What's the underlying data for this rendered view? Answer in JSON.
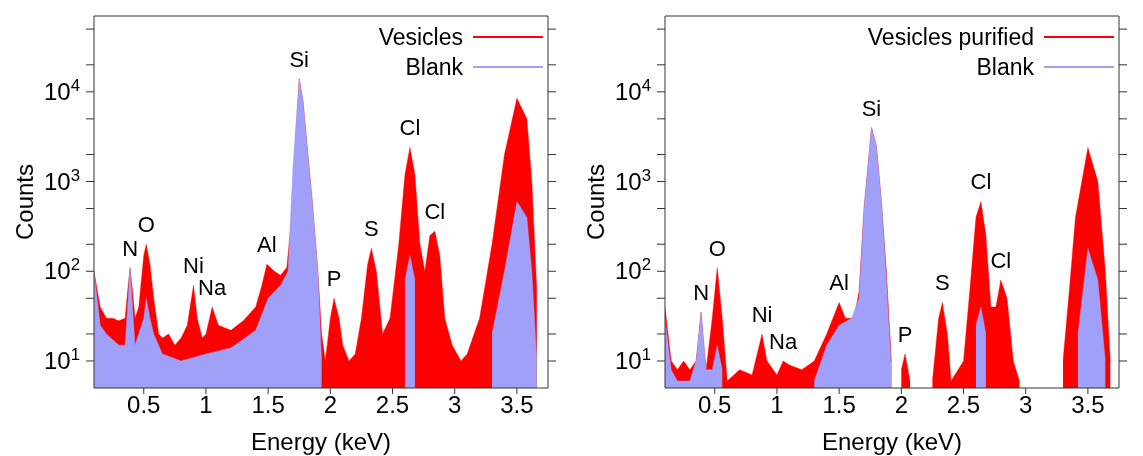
{
  "chart_data": [
    {
      "type": "area",
      "xlabel": "Energy (keV)",
      "ylabel": "Counts",
      "log": true,
      "legend": "top right",
      "grid": false,
      "xlim": [
        0.1,
        3.75
      ],
      "xticks": [
        0.5,
        1,
        1.5,
        2,
        2.5,
        3,
        3.5
      ],
      "ylim": [
        5,
        70000
      ],
      "yticks": [
        {
          "value": 10,
          "label": "10$^{1}$"
        },
        {
          "value": 20,
          "label": null
        },
        {
          "value": 50,
          "label": null
        },
        {
          "value": 100,
          "label": "10$^{2}$"
        },
        {
          "value": 200,
          "label": null
        },
        {
          "value": 500,
          "label": null
        },
        {
          "value": 1000,
          "label": "10$^{3}$"
        },
        {
          "value": 2000,
          "label": null
        },
        {
          "value": 5000,
          "label": null
        },
        {
          "value": 10000,
          "label": "10$^{4}$"
        },
        {
          "value": 20000,
          "label": null
        },
        {
          "value": 50000,
          "label": null
        }
      ],
      "series": [
        {
          "name": "Vesicles",
          "color": "#ff0000",
          "x": [
            0.1,
            0.15,
            0.2,
            0.25,
            0.3,
            0.35,
            0.37,
            0.39,
            0.41,
            0.43,
            0.46,
            0.5,
            0.52,
            0.55,
            0.58,
            0.62,
            0.65,
            0.7,
            0.75,
            0.8,
            0.85,
            0.9,
            0.93,
            0.97,
            1.0,
            1.05,
            1.1,
            1.2,
            1.3,
            1.4,
            1.45,
            1.49,
            1.55,
            1.6,
            1.65,
            1.68,
            1.72,
            1.75,
            1.78,
            1.82,
            1.86,
            1.9,
            1.93,
            1.96,
            2.0,
            2.03,
            2.07,
            2.1,
            2.15,
            2.2,
            2.25,
            2.3,
            2.33,
            2.37,
            2.42,
            2.48,
            2.55,
            2.6,
            2.64,
            2.68,
            2.72,
            2.76,
            2.8,
            2.84,
            2.88,
            2.92,
            2.98,
            3.05,
            3.1,
            3.2,
            3.3,
            3.4,
            3.5,
            3.58,
            3.62,
            3.66
          ],
          "values": [
            100,
            40,
            30,
            30,
            28,
            30,
            60,
            110,
            60,
            30,
            40,
            150,
            200,
            120,
            50,
            20,
            18,
            20,
            15,
            18,
            25,
            70,
            30,
            18,
            20,
            40,
            25,
            22,
            28,
            40,
            70,
            120,
            100,
            90,
            110,
            300,
            3000,
            14000,
            8000,
            2000,
            500,
            100,
            20,
            10,
            30,
            50,
            30,
            15,
            10,
            12,
            30,
            120,
            180,
            100,
            20,
            30,
            200,
            1200,
            2400,
            1200,
            200,
            100,
            250,
            280,
            150,
            30,
            15,
            10,
            12,
            30,
            200,
            2000,
            8500,
            5000,
            1000,
            60
          ]
        },
        {
          "name": "Blank",
          "color": "#a0a0f8",
          "x": [
            0.1,
            0.15,
            0.2,
            0.3,
            0.35,
            0.37,
            0.39,
            0.41,
            0.43,
            0.5,
            0.52,
            0.55,
            0.58,
            0.65,
            0.8,
            1.0,
            1.2,
            1.4,
            1.5,
            1.6,
            1.66,
            1.7,
            1.75,
            1.78,
            1.82,
            1.86,
            1.9,
            1.93,
            1.95,
            2.58,
            2.6,
            2.64,
            2.68,
            2.71,
            3.3,
            3.4,
            3.5,
            3.58,
            3.62,
            3.66
          ],
          "values": [
            100,
            25,
            20,
            15,
            15,
            40,
            110,
            40,
            15,
            30,
            50,
            30,
            20,
            12,
            10,
            12,
            14,
            22,
            50,
            70,
            100,
            1500,
            14000,
            8000,
            2000,
            500,
            100,
            10,
            null,
            null,
            80,
            150,
            80,
            null,
            20,
            100,
            600,
            400,
            100,
            10
          ]
        }
      ],
      "annotations": [
        {
          "text": "N",
          "x": 0.39,
          "y": 110
        },
        {
          "text": "O",
          "x": 0.52,
          "y": 200
        },
        {
          "text": "Ni",
          "x": 0.9,
          "y": 70
        },
        {
          "text": "Na",
          "x": 1.05,
          "y": 40
        },
        {
          "text": "Al",
          "x": 1.49,
          "y": 120
        },
        {
          "text": "Si",
          "x": 1.75,
          "y": 14000
        },
        {
          "text": "P",
          "x": 2.03,
          "y": 50
        },
        {
          "text": "S",
          "x": 2.33,
          "y": 180
        },
        {
          "text": "Cl",
          "x": 2.64,
          "y": 2400
        },
        {
          "text": "Cl",
          "x": 2.84,
          "y": 280
        }
      ]
    },
    {
      "type": "area",
      "xlabel": "Energy (keV)",
      "ylabel": "Counts",
      "log": true,
      "legend": "top right",
      "grid": false,
      "xlim": [
        0.1,
        3.75
      ],
      "xticks": [
        0.5,
        1,
        1.5,
        2,
        2.5,
        3,
        3.5
      ],
      "ylim": [
        5,
        70000
      ],
      "yticks": [
        {
          "value": 10,
          "label": "10$^{1}$"
        },
        {
          "value": 20,
          "label": null
        },
        {
          "value": 50,
          "label": null
        },
        {
          "value": 100,
          "label": "10$^{2}$"
        },
        {
          "value": 200,
          "label": null
        },
        {
          "value": 500,
          "label": null
        },
        {
          "value": 1000,
          "label": "10$^{3}$"
        },
        {
          "value": 2000,
          "label": null
        },
        {
          "value": 5000,
          "label": null
        },
        {
          "value": 10000,
          "label": "10$^{4}$"
        },
        {
          "value": 20000,
          "label": null
        },
        {
          "value": 50000,
          "label": null
        }
      ],
      "series": [
        {
          "name": "Vesicles purified",
          "color": "#ff0000",
          "x": [
            0.1,
            0.15,
            0.2,
            0.25,
            0.3,
            0.35,
            0.39,
            0.43,
            0.48,
            0.52,
            0.56,
            0.6,
            0.7,
            0.8,
            0.88,
            0.92,
            1.0,
            1.05,
            1.1,
            1.2,
            1.3,
            1.4,
            1.5,
            1.55,
            1.62,
            1.66,
            1.7,
            1.76,
            1.8,
            1.84,
            1.88,
            1.92,
            1.95,
            2.0,
            2.03,
            2.07,
            2.1,
            2.25,
            2.3,
            2.33,
            2.37,
            2.4,
            2.5,
            2.55,
            2.6,
            2.64,
            2.68,
            2.72,
            2.76,
            2.8,
            2.85,
            2.9,
            2.95,
            2.98,
            3.3,
            3.35,
            3.4,
            3.5,
            3.58,
            3.64,
            3.68
          ],
          "values": [
            40,
            10,
            8,
            10,
            8,
            10,
            35,
            8,
            30,
            110,
            30,
            6,
            8,
            7,
            20,
            10,
            7,
            10,
            9,
            8,
            10,
            20,
            45,
            30,
            30,
            60,
            500,
            4000,
            2500,
            600,
            100,
            10,
            null,
            8,
            12,
            6,
            null,
            6,
            30,
            45,
            20,
            6,
            10,
            60,
            400,
            600,
            250,
            40,
            40,
            80,
            50,
            10,
            6,
            null,
            10,
            60,
            400,
            2400,
            1000,
            100,
            10
          ]
        },
        {
          "name": "Blank",
          "color": "#a0a0f8",
          "x": [
            0.1,
            0.15,
            0.2,
            0.3,
            0.35,
            0.39,
            0.43,
            0.48,
            0.52,
            0.56,
            0.6,
            1.3,
            1.4,
            1.5,
            1.6,
            1.66,
            1.7,
            1.76,
            1.8,
            1.84,
            1.88,
            1.92,
            1.95,
            2.58,
            2.6,
            2.64,
            2.68,
            2.72,
            3.38,
            3.42,
            3.5,
            3.58,
            3.64
          ],
          "values": [
            30,
            8,
            6,
            6,
            10,
            35,
            8,
            8,
            15,
            8,
            null,
            6,
            15,
            25,
            30,
            50,
            500,
            4000,
            2500,
            600,
            80,
            8,
            null,
            null,
            25,
            40,
            20,
            null,
            null,
            20,
            180,
            80,
            10
          ]
        }
      ],
      "annotations": [
        {
          "text": "N",
          "x": 0.39,
          "y": 35
        },
        {
          "text": "O",
          "x": 0.52,
          "y": 110
        },
        {
          "text": "Ni",
          "x": 0.88,
          "y": 20
        },
        {
          "text": "Na",
          "x": 1.05,
          "y": 10
        },
        {
          "text": "Al",
          "x": 1.5,
          "y": 45
        },
        {
          "text": "Si",
          "x": 1.76,
          "y": 4000
        },
        {
          "text": "P",
          "x": 2.03,
          "y": 12
        },
        {
          "text": "S",
          "x": 2.33,
          "y": 45
        },
        {
          "text": "Cl",
          "x": 2.64,
          "y": 600
        },
        {
          "text": "Cl",
          "x": 2.8,
          "y": 80
        }
      ]
    }
  ]
}
